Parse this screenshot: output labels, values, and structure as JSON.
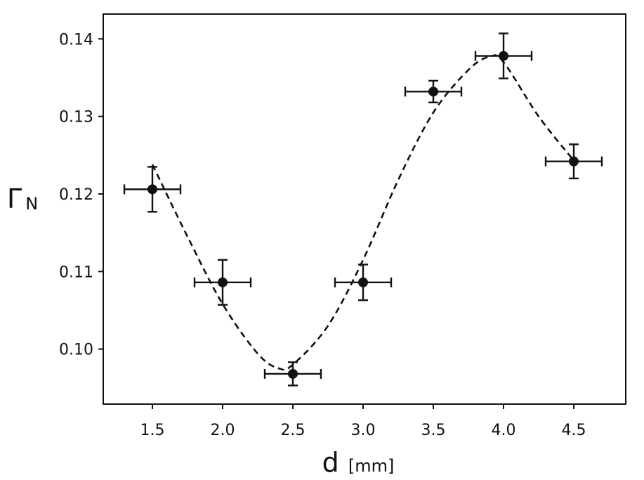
{
  "chart_data": {
    "type": "scatter",
    "title": "",
    "xlabel": {
      "main": "d",
      "unit": "[mm]"
    },
    "ylabel": {
      "main": "Γ",
      "subscript": "N"
    },
    "xlim": [
      1.15,
      4.87
    ],
    "ylim": [
      0.0929,
      0.1432
    ],
    "xticks": [
      1.5,
      2.0,
      2.5,
      3.0,
      3.5,
      4.0,
      4.5
    ],
    "xtick_labels": [
      "1.5",
      "2.0",
      "2.5",
      "3.0",
      "3.5",
      "4.0",
      "4.5"
    ],
    "yticks": [
      0.1,
      0.11,
      0.12,
      0.13,
      0.14
    ],
    "ytick_labels": [
      "0.10",
      "0.11",
      "0.12",
      "0.13",
      "0.14"
    ],
    "grid": false,
    "series": [
      {
        "kind": "points-with-errorbars",
        "points": [
          {
            "x": 1.5,
            "y": 0.1206,
            "xerr": 0.2,
            "yerr": 0.0029
          },
          {
            "x": 2.0,
            "y": 0.1086,
            "xerr": 0.2,
            "yerr": 0.0029
          },
          {
            "x": 2.5,
            "y": 0.0968,
            "xerr": 0.2,
            "yerr": 0.0015
          },
          {
            "x": 3.0,
            "y": 0.1086,
            "xerr": 0.2,
            "yerr": 0.0023
          },
          {
            "x": 3.5,
            "y": 0.1332,
            "xerr": 0.2,
            "yerr": 0.0014
          },
          {
            "x": 4.0,
            "y": 0.1378,
            "xerr": 0.2,
            "yerr": 0.0029
          },
          {
            "x": 4.5,
            "y": 0.1242,
            "xerr": 0.2,
            "yerr": 0.0022
          }
        ],
        "color": "#111111"
      },
      {
        "kind": "fit-curve",
        "style": "dashed",
        "x": [
          1.5,
          1.75,
          2.0,
          2.25,
          2.4,
          2.5,
          2.75,
          3.0,
          3.25,
          3.5,
          3.75,
          3.9,
          4.0,
          4.25,
          4.5
        ],
        "y": [
          0.1238,
          0.1145,
          0.1058,
          0.0994,
          0.0975,
          0.098,
          0.103,
          0.1115,
          0.1218,
          0.1305,
          0.136,
          0.1377,
          0.137,
          0.13,
          0.1243
        ],
        "color": "#111111"
      }
    ]
  }
}
